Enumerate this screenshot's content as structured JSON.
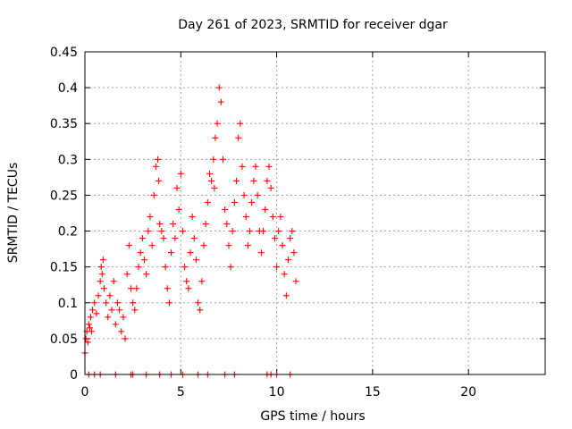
{
  "chart_data": {
    "type": "scatter",
    "title": "Day 261 of 2023, SRMTID for receiver dgar",
    "xlabel": "GPS time / hours",
    "ylabel": "SRMTID / TECUs",
    "xlim": [
      0,
      24
    ],
    "ylim": [
      0,
      0.45
    ],
    "xticks": [
      0,
      5,
      10,
      15,
      20
    ],
    "yticks": [
      0,
      0.05,
      0.1,
      0.15,
      0.2,
      0.25,
      0.3,
      0.35,
      0.4,
      0.45
    ],
    "xtick_labels": [
      "0",
      "5",
      "10",
      "15",
      "20"
    ],
    "ytick_labels": [
      "0",
      "0.05",
      "0.1",
      "0.15",
      "0.2",
      "0.25",
      "0.3",
      "0.35",
      "0.4",
      "0.45"
    ],
    "grid": true,
    "marker": "+",
    "color": "#ff0000",
    "series": [
      {
        "name": "SRMTID",
        "x": [
          0.0,
          0.05,
          0.1,
          0.15,
          0.2,
          0.25,
          0.3,
          0.35,
          0.4,
          0.5,
          0.6,
          0.7,
          0.8,
          0.85,
          0.9,
          0.95,
          1.0,
          1.1,
          1.2,
          1.3,
          1.4,
          1.5,
          1.6,
          1.7,
          1.8,
          1.9,
          2.0,
          2.1,
          2.2,
          2.3,
          2.4,
          2.5,
          2.6,
          2.7,
          2.8,
          2.9,
          3.0,
          3.1,
          3.2,
          3.3,
          3.4,
          3.5,
          3.6,
          3.7,
          3.8,
          3.85,
          3.9,
          4.0,
          4.1,
          4.2,
          4.3,
          4.4,
          4.5,
          4.6,
          4.7,
          4.8,
          4.9,
          5.0,
          5.1,
          5.2,
          5.3,
          5.4,
          5.5,
          5.6,
          5.7,
          5.8,
          5.9,
          6.0,
          6.1,
          6.2,
          6.3,
          6.4,
          6.5,
          6.6,
          6.7,
          6.75,
          6.8,
          6.9,
          7.0,
          7.1,
          7.2,
          7.3,
          7.4,
          7.5,
          7.6,
          7.7,
          7.8,
          7.9,
          8.0,
          8.1,
          8.2,
          8.3,
          8.4,
          8.5,
          8.6,
          8.7,
          8.8,
          8.9,
          9.0,
          9.1,
          9.2,
          9.3,
          9.4,
          9.5,
          9.6,
          9.7,
          9.8,
          9.9,
          10.0,
          10.1,
          10.2,
          10.3,
          10.4,
          10.5,
          10.6,
          10.7,
          10.8,
          10.9,
          11.0
        ],
        "y": [
          0.03,
          0.05,
          0.06,
          0.045,
          0.07,
          0.065,
          0.08,
          0.06,
          0.09,
          0.1,
          0.085,
          0.11,
          0.13,
          0.15,
          0.14,
          0.16,
          0.12,
          0.1,
          0.08,
          0.11,
          0.09,
          0.13,
          0.07,
          0.1,
          0.09,
          0.06,
          0.08,
          0.05,
          0.14,
          0.18,
          0.12,
          0.1,
          0.09,
          0.12,
          0.15,
          0.17,
          0.19,
          0.16,
          0.14,
          0.2,
          0.22,
          0.18,
          0.25,
          0.29,
          0.3,
          0.27,
          0.21,
          0.2,
          0.19,
          0.15,
          0.12,
          0.1,
          0.17,
          0.21,
          0.19,
          0.26,
          0.23,
          0.28,
          0.2,
          0.15,
          0.13,
          0.12,
          0.17,
          0.22,
          0.19,
          0.16,
          0.1,
          0.09,
          0.13,
          0.18,
          0.21,
          0.24,
          0.28,
          0.27,
          0.3,
          0.26,
          0.33,
          0.35,
          0.4,
          0.38,
          0.3,
          0.23,
          0.21,
          0.18,
          0.15,
          0.2,
          0.24,
          0.27,
          0.33,
          0.35,
          0.29,
          0.25,
          0.22,
          0.18,
          0.2,
          0.24,
          0.27,
          0.29,
          0.25,
          0.2,
          0.17,
          0.2,
          0.23,
          0.27,
          0.29,
          0.26,
          0.22,
          0.19,
          0.15,
          0.2,
          0.22,
          0.18,
          0.14,
          0.11,
          0.16,
          0.19,
          0.2,
          0.17,
          0.13
        ]
      },
      {
        "name": "zero-values",
        "x": [
          0.2,
          0.5,
          0.8,
          1.6,
          2.4,
          2.5,
          3.2,
          3.9,
          4.5,
          5.1,
          5.9,
          6.4,
          7.3,
          7.8,
          9.5,
          9.7,
          10.0,
          10.7
        ],
        "y": [
          0,
          0,
          0,
          0,
          0,
          0,
          0,
          0,
          0,
          0,
          0,
          0,
          0,
          0,
          0,
          0,
          0,
          0
        ]
      }
    ]
  }
}
